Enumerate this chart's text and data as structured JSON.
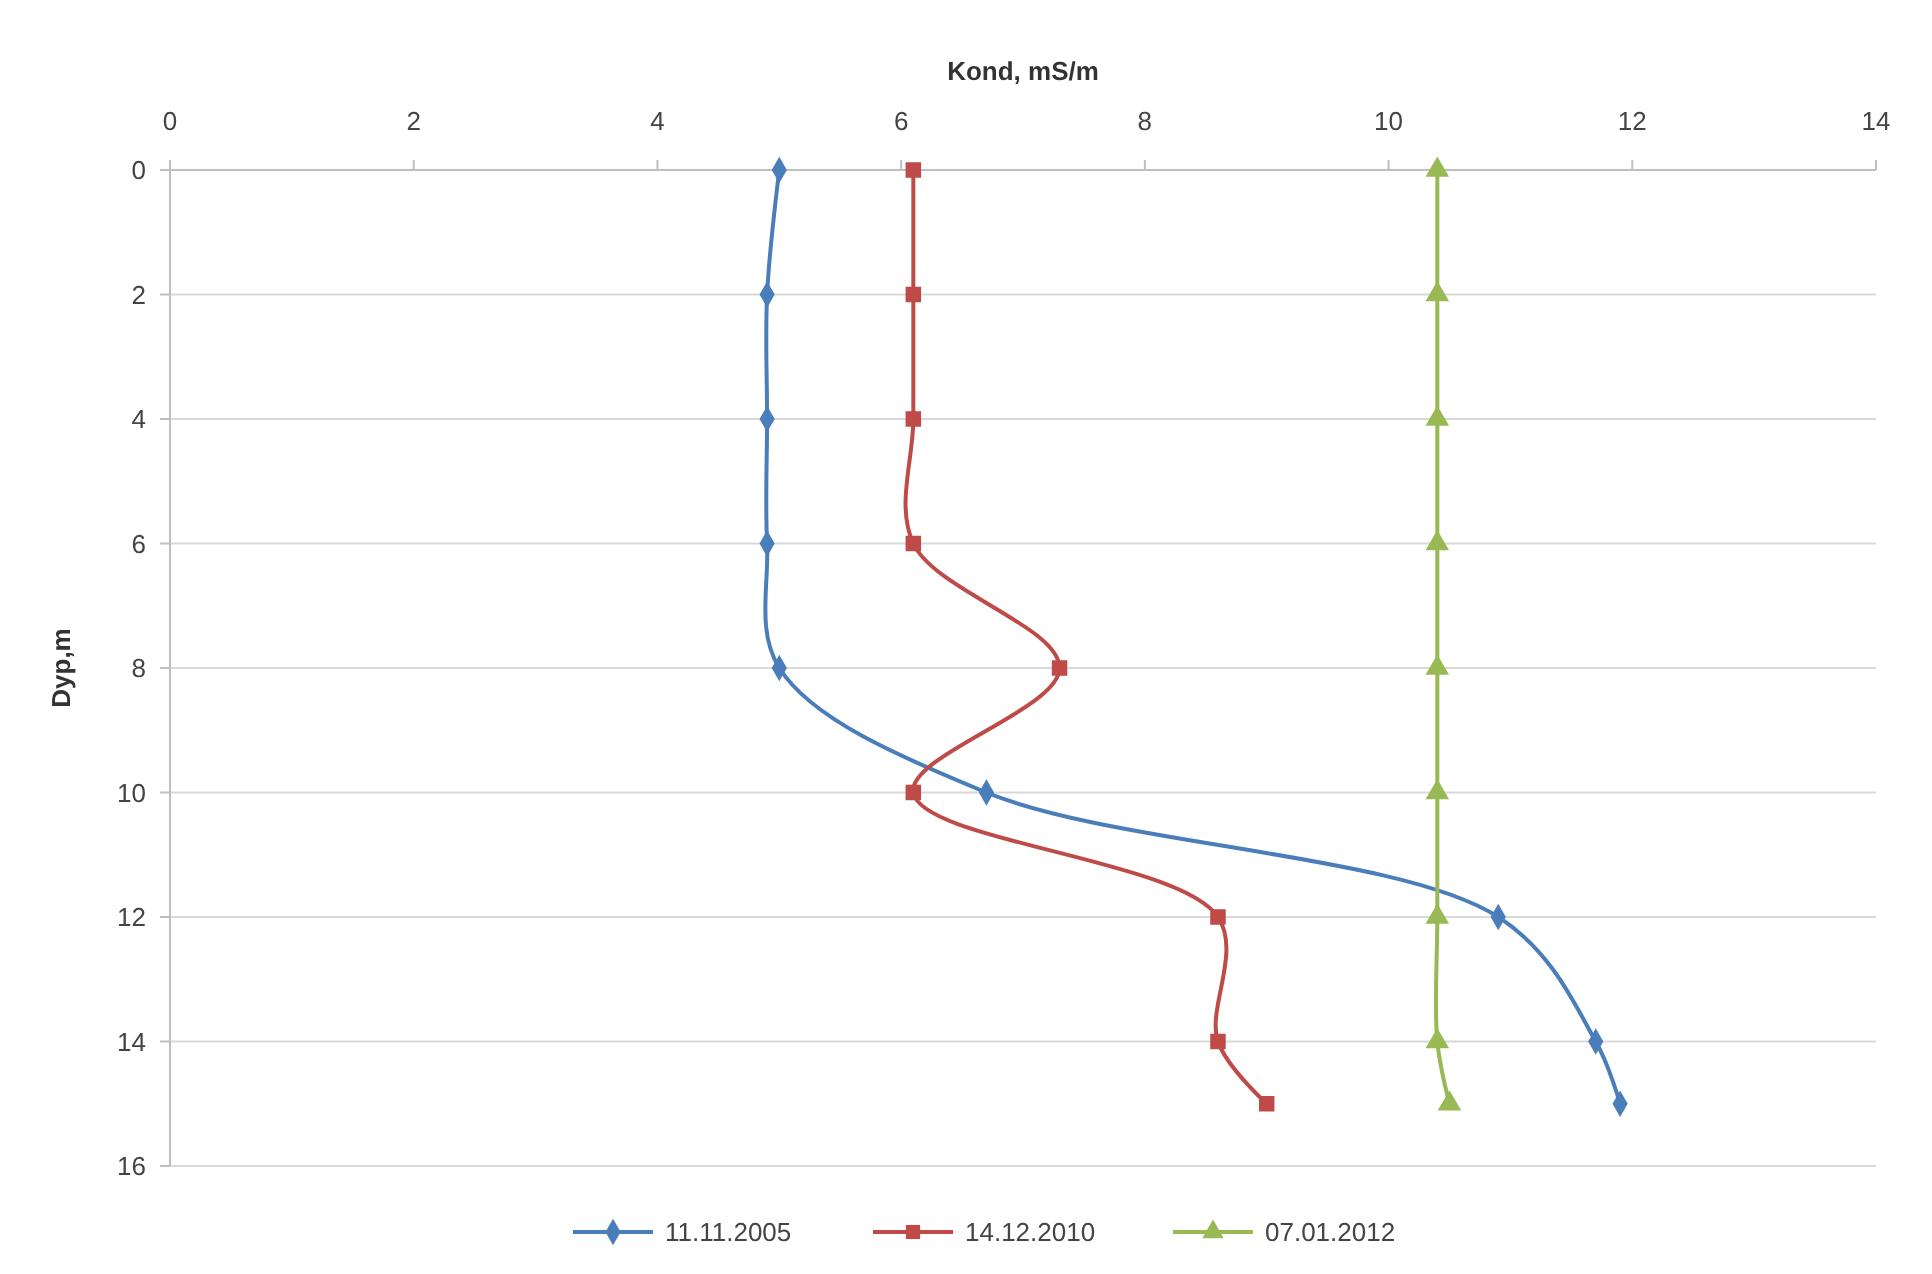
{
  "chart_data": {
    "type": "line",
    "xlabel": "Kond, mS/m",
    "ylabel": "Dyp,m",
    "xlim": [
      0,
      14
    ],
    "xticks": [
      0,
      2,
      4,
      6,
      8,
      10,
      12,
      14
    ],
    "ylim": [
      16,
      0
    ],
    "yticks": [
      0,
      2,
      4,
      6,
      8,
      10,
      12,
      14,
      16
    ],
    "grid": "y",
    "legend": "bottom",
    "line_style": "solid",
    "series": [
      {
        "name": "11.11.2005",
        "color": "#4a7ebb",
        "marker": "diamond",
        "x": [
          5.0,
          4.9,
          4.9,
          4.9,
          5.0,
          6.7,
          10.9,
          11.7,
          11.9
        ],
        "values": [
          0,
          2,
          4,
          6,
          8,
          10,
          12,
          14,
          15
        ]
      },
      {
        "name": "14.12.2010",
        "color": "#be4b48",
        "marker": "square",
        "x": [
          6.1,
          6.1,
          6.1,
          6.1,
          7.3,
          6.1,
          8.6,
          8.6,
          9.0
        ],
        "values": [
          0,
          2,
          4,
          6,
          8,
          10,
          12,
          14,
          15
        ]
      },
      {
        "name": "07.01.2012",
        "color": "#98b954",
        "marker": "triangle",
        "x": [
          10.4,
          10.4,
          10.4,
          10.4,
          10.4,
          10.4,
          10.4,
          10.4,
          10.5
        ],
        "values": [
          0,
          2,
          4,
          6,
          8,
          10,
          12,
          14,
          15
        ]
      }
    ]
  }
}
